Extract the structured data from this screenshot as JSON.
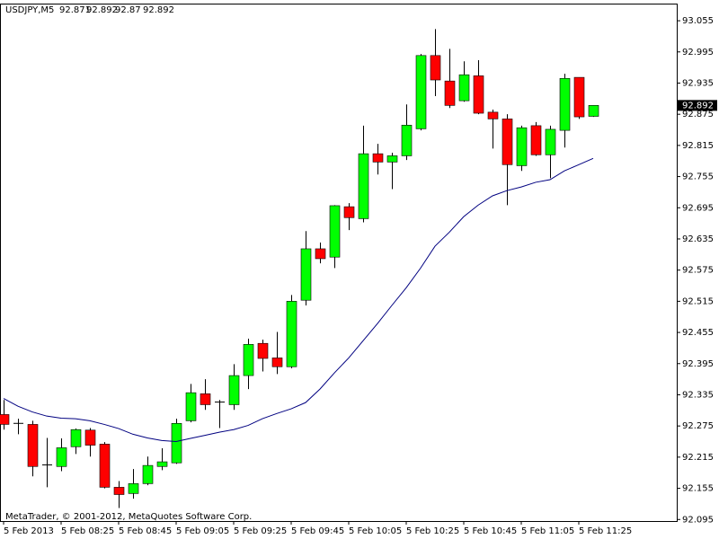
{
  "chart_data": {
    "type": "candlestick",
    "title": "USDJPY,M5",
    "annotation": "MetaTrader, © 2001-2012, MetaQuotes Software Corp.",
    "categories": [
      "5 Feb 2013",
      null,
      null,
      null,
      "5 Feb 08:25",
      null,
      null,
      null,
      "5 Feb 08:45",
      null,
      null,
      null,
      "5 Feb 09:05",
      null,
      null,
      null,
      "5 Feb 09:25",
      null,
      null,
      null,
      "5 Feb 09:45",
      null,
      null,
      null,
      "5 Feb 10:05",
      null,
      null,
      null,
      "5 Feb 10:25",
      null,
      null,
      null,
      "5 Feb 10:45",
      null,
      null,
      null,
      "5 Feb 11:05",
      null,
      null,
      null,
      "5 Feb 11:25",
      null
    ],
    "open": [
      92.297,
      92.28,
      92.278,
      92.2,
      92.197,
      92.235,
      92.267,
      92.24,
      92.157,
      92.145,
      92.164,
      92.197,
      92.204,
      92.285,
      92.337,
      92.321,
      92.316,
      92.372,
      92.434,
      92.406,
      92.389,
      92.517,
      92.616,
      92.6,
      92.697,
      92.674,
      92.799,
      92.783,
      92.795,
      92.847,
      92.988,
      92.939,
      92.901,
      92.949,
      92.879,
      92.866,
      92.776,
      92.853,
      92.797,
      92.844,
      92.946,
      92.871
    ],
    "high": [
      92.325,
      92.289,
      92.285,
      92.252,
      92.251,
      92.27,
      92.271,
      92.244,
      92.169,
      92.192,
      92.216,
      92.232,
      92.289,
      92.356,
      92.365,
      92.325,
      92.394,
      92.443,
      92.441,
      92.456,
      92.527,
      92.65,
      92.628,
      92.7,
      92.704,
      92.853,
      92.818,
      92.801,
      92.894,
      92.991,
      93.039,
      93.001,
      92.977,
      92.979,
      92.884,
      92.875,
      92.853,
      92.86,
      92.853,
      92.953,
      92.946,
      92.892
    ],
    "low": [
      92.268,
      92.259,
      92.178,
      92.157,
      92.188,
      92.221,
      92.216,
      92.155,
      92.117,
      92.135,
      92.161,
      92.19,
      92.202,
      92.282,
      92.306,
      92.271,
      92.306,
      92.346,
      92.38,
      92.375,
      92.386,
      92.507,
      92.588,
      92.579,
      92.652,
      92.667,
      92.759,
      92.731,
      92.787,
      92.844,
      92.91,
      92.887,
      92.899,
      92.875,
      92.809,
      92.7,
      92.766,
      92.795,
      92.752,
      92.811,
      92.866,
      92.87
    ],
    "close": [
      92.278,
      92.279,
      92.197,
      92.199,
      92.233,
      92.268,
      92.238,
      92.157,
      92.143,
      92.164,
      92.199,
      92.206,
      92.28,
      92.339,
      92.316,
      92.32,
      92.372,
      92.432,
      92.405,
      92.389,
      92.515,
      92.616,
      92.597,
      92.699,
      92.676,
      92.799,
      92.783,
      92.795,
      92.854,
      92.988,
      92.941,
      92.892,
      92.951,
      92.877,
      92.866,
      92.778,
      92.849,
      92.797,
      92.846,
      92.944,
      92.87,
      92.892
    ],
    "up_color": "#00ff00",
    "down_color": "#ff0000",
    "ma": {
      "color": "#000080",
      "values": [
        92.328,
        92.313,
        92.302,
        92.294,
        92.29,
        92.289,
        92.285,
        92.278,
        92.27,
        92.259,
        92.252,
        92.247,
        92.245,
        92.251,
        92.257,
        92.263,
        92.268,
        92.276,
        92.289,
        92.299,
        92.308,
        92.32,
        92.346,
        92.377,
        92.406,
        92.439,
        92.472,
        92.507,
        92.541,
        92.579,
        92.621,
        92.648,
        92.678,
        92.7,
        92.718,
        92.728,
        92.735,
        92.744,
        92.749,
        92.766,
        92.778,
        92.79
      ]
    },
    "ylim": [
      92.092,
      93.088
    ],
    "yticks": [
      92.095,
      92.155,
      92.215,
      92.275,
      92.335,
      92.395,
      92.455,
      92.515,
      92.575,
      92.635,
      92.695,
      92.755,
      92.815,
      92.875,
      92.935,
      92.995,
      93.055
    ]
  }
}
